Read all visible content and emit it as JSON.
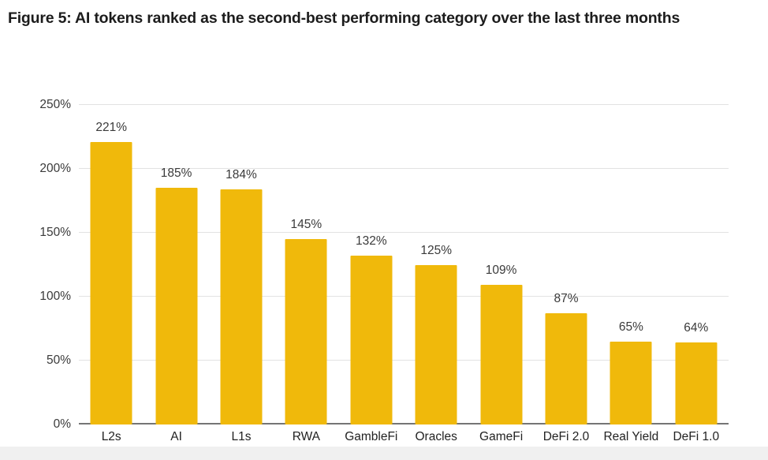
{
  "figure": {
    "title": "Figure 5: AI tokens ranked as the second-best performing category over the last three months"
  },
  "chart_data": {
    "type": "bar",
    "title": "Figure 5: AI tokens ranked as the second-best performing category over the last three months",
    "categories": [
      "L2s",
      "AI",
      "L1s",
      "RWA",
      "GambleFi",
      "Oracles",
      "GameFi",
      "DeFi 2.0",
      "Real Yield",
      "DeFi 1.0"
    ],
    "values": [
      221,
      185,
      184,
      145,
      132,
      125,
      109,
      87,
      65,
      64
    ],
    "value_labels": [
      "221%",
      "185%",
      "184%",
      "145%",
      "132%",
      "125%",
      "109%",
      "87%",
      "65%",
      "64%"
    ],
    "xlabel": "",
    "ylabel": "",
    "ylim": [
      0,
      250
    ],
    "ytick_values": [
      0,
      50,
      100,
      150,
      200,
      250
    ],
    "ytick_labels": [
      "0%",
      "50%",
      "100%",
      "150%",
      "200%",
      "250%"
    ],
    "grid": true,
    "legend": false,
    "colors": {
      "bar": "#F0B90B",
      "gridline": "#e2e2e2",
      "axis_line": "#757575",
      "tick_text": "#3a3a3a",
      "value_text": "#3a3a3a",
      "title_text": "#1c1c1c"
    }
  }
}
